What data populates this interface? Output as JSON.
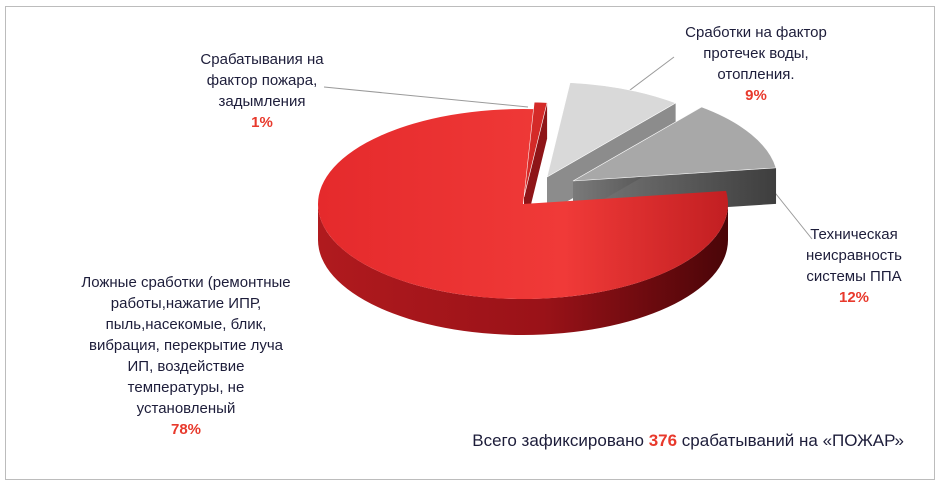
{
  "chart_data": {
    "type": "pie",
    "title": "",
    "slices": [
      {
        "label_lines": [
          "Срабатывания на",
          "фактор пожара,",
          "задымления"
        ],
        "value": 1,
        "value_label": "1%",
        "color": "#d42a28"
      },
      {
        "label_lines": [
          "Сработки на фактор",
          "протечек воды,",
          "отопления."
        ],
        "value": 9,
        "value_label": "9%",
        "color": "#d9d9d9"
      },
      {
        "label_lines": [
          "Техническая",
          "неисравность",
          "системы ППА"
        ],
        "value": 12,
        "value_label": "12%",
        "color": "#a8a8a8"
      },
      {
        "label_lines": [
          "Ложные сработки (ремонтные",
          "работы,нажатие ИПР,",
          "пыль,насекомые, блик,",
          "вибрация, перекрытие луча",
          "ИП, воздействие",
          "температуры, не",
          "установленый"
        ],
        "value": 78,
        "value_label": "78%",
        "color": "#e8262a"
      }
    ]
  },
  "footer": {
    "prefix": "Всего зафиксировано ",
    "count": "376",
    "suffix": " срабатываний на «ПОЖАР»"
  }
}
